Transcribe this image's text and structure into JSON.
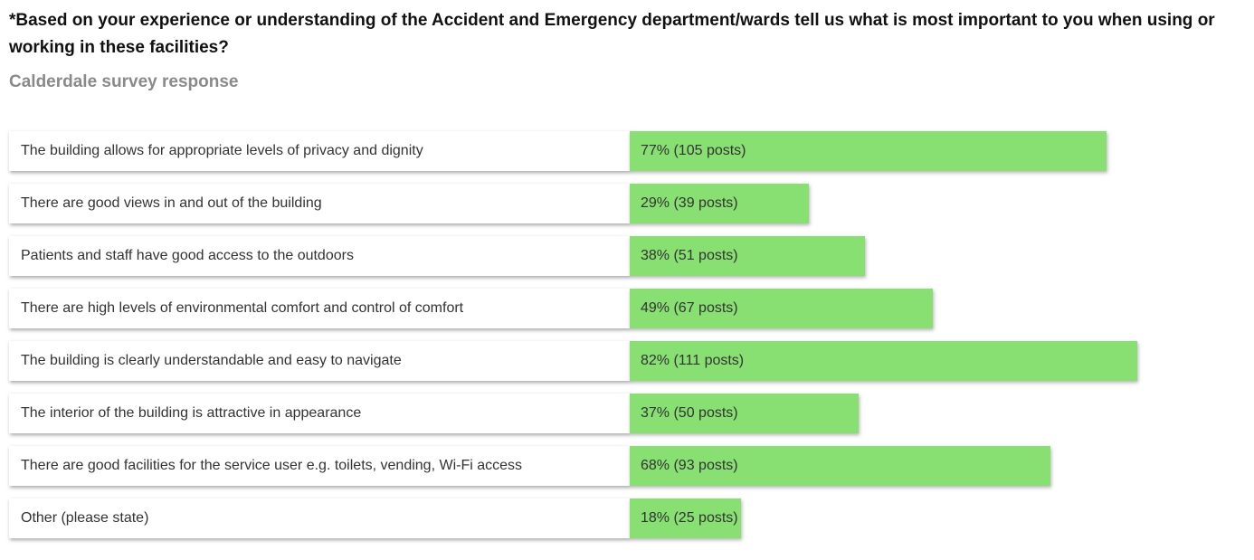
{
  "chart_data": {
    "type": "bar",
    "orientation": "horizontal",
    "title": "*Based on your experience or understanding of the Accident and Emergency department/wards tell us what is most important to you when using or working in these facilities?",
    "subtitle": "Calderdale survey response",
    "categories": [
      "The building allows for appropriate levels of privacy and dignity",
      "There are good views in and out of the building",
      "Patients and staff have good access to the outdoors",
      "There are high levels of environmental comfort and control of comfort",
      "The building is clearly understandable and easy to navigate",
      "The interior of the building is attractive in appearance",
      "There are good facilities for the service user e.g. toilets, vending, Wi-Fi access",
      "Other (please state)"
    ],
    "values": [
      77,
      29,
      38,
      49,
      82,
      37,
      68,
      18
    ],
    "value_labels": [
      "77% (105 posts)",
      "29% (39 posts)",
      "38% (51 posts)",
      "49% (67 posts)",
      "82% (111 posts)",
      "37% (50 posts)",
      "68% (93 posts)",
      "18% (25 posts)"
    ],
    "color": "#88df72"
  }
}
